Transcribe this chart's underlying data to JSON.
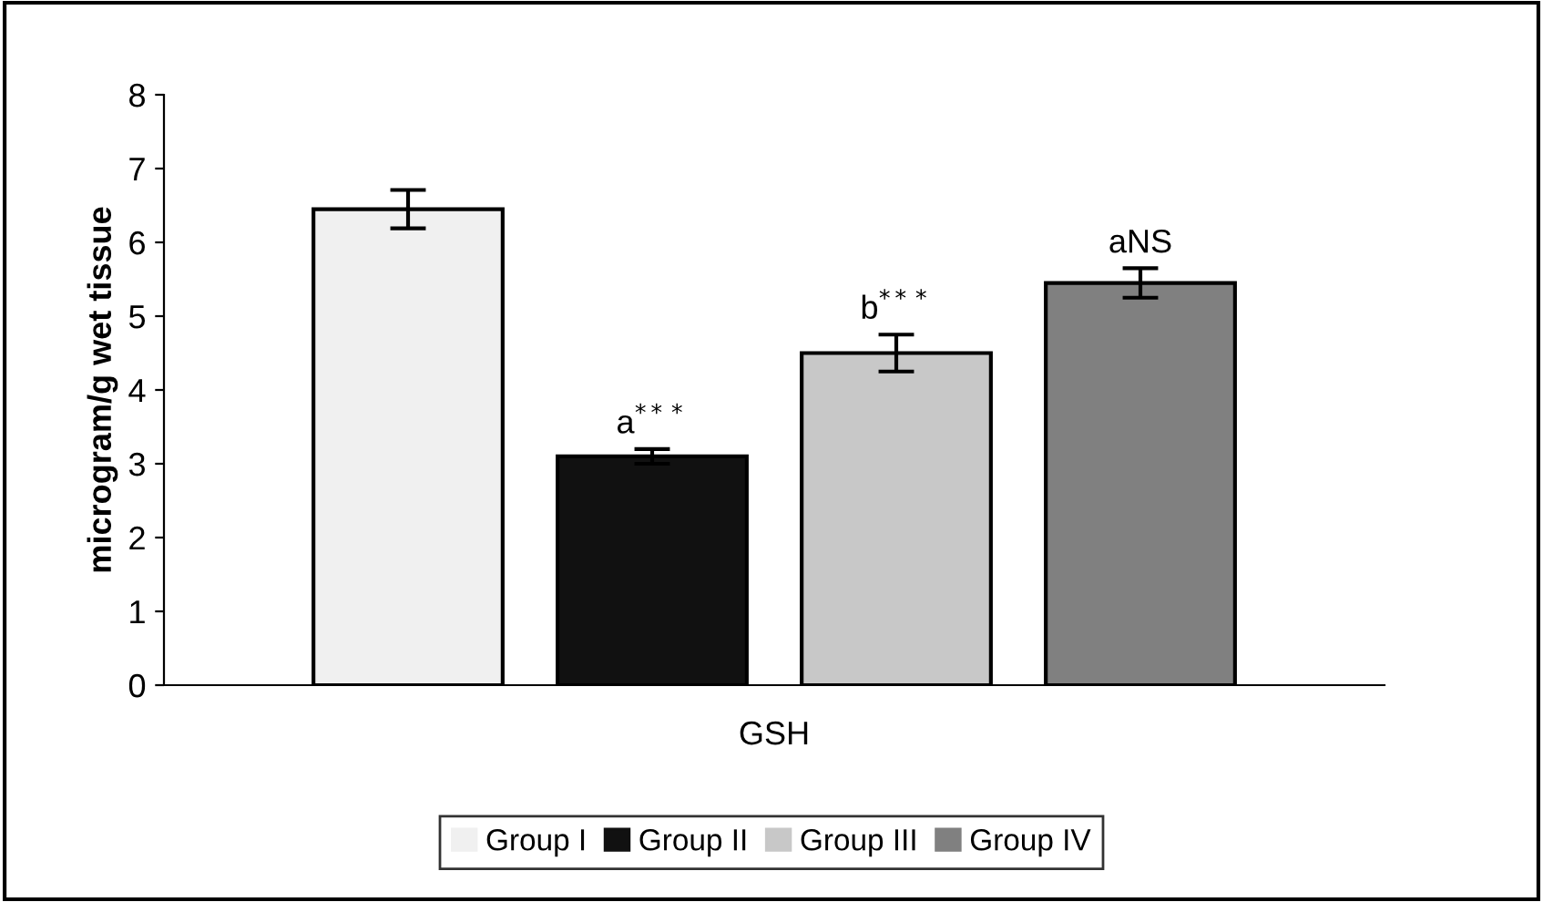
{
  "chart_data": {
    "type": "bar",
    "ylabel": "microgram/g wet tissue",
    "categories": [
      "GSH"
    ],
    "series": [
      {
        "name": "Group I",
        "color": "#f0f0f0",
        "values": [
          6.45
        ],
        "errors": [
          0.26
        ],
        "value_labels": [
          null
        ]
      },
      {
        "name": "Group II",
        "color": "#111111",
        "values": [
          3.1
        ],
        "errors": [
          0.1
        ],
        "value_labels": [
          "a$^{***}$"
        ]
      },
      {
        "name": "Group III",
        "color": "#c8c8c8",
        "values": [
          4.5
        ],
        "errors": [
          0.25
        ],
        "value_labels": [
          "b$^{***}$"
        ]
      },
      {
        "name": "Group IV",
        "color": "#808080",
        "values": [
          5.45
        ],
        "errors": [
          0.2
        ],
        "value_labels": [
          "aNS"
        ]
      }
    ],
    "ylim": [
      0,
      8
    ],
    "yticks": [
      0,
      1,
      2,
      3,
      4,
      5,
      6,
      7,
      8
    ],
    "grid": false,
    "legend": "bottom"
  }
}
